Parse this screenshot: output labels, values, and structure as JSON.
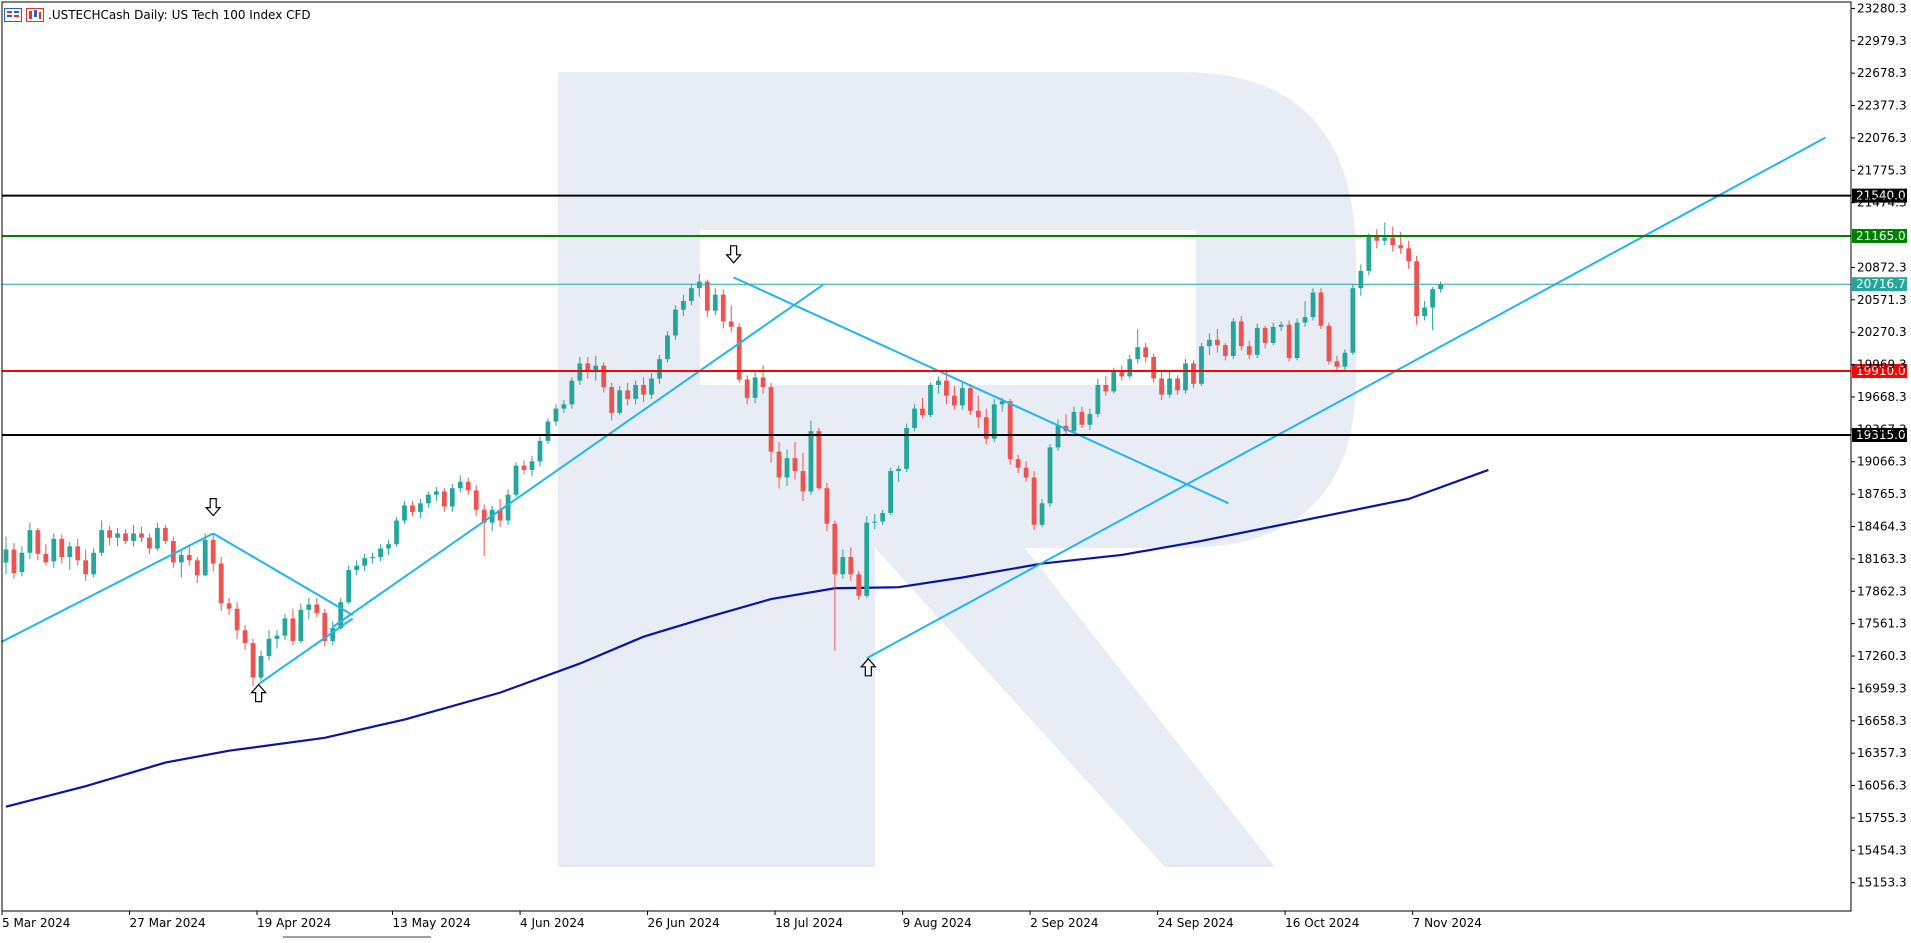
{
  "header": {
    "symbol": ".USTECHCash",
    "timeframe": "Daily:",
    "description": "US Tech 100 Index CFD"
  },
  "icons": [
    "chart-menu-icon",
    "chart-type-icon"
  ],
  "colors": {
    "bull": "#26a69a",
    "bear": "#ef5350",
    "ma": "#0b14a0",
    "trend": "#1fb6ef",
    "resistance_top": "#000000",
    "resistance": "#008000",
    "current": "#26a69a",
    "support": "#ff0000",
    "support_bottom": "#000000"
  },
  "chart_data": {
    "type": "candlestick",
    "y_axis": {
      "ticks": [
        "23280.3",
        "22979.3",
        "22678.3",
        "22377.3",
        "22076.3",
        "21775.3",
        "21474.3",
        "20872.3",
        "20571.3",
        "20270.3",
        "19969.3",
        "19668.3",
        "19367.3",
        "19066.3",
        "18765.3",
        "18464.3",
        "18163.3",
        "17862.3",
        "17561.3",
        "17260.3",
        "16959.3",
        "16658.3",
        "16357.3",
        "16056.3",
        "15755.3",
        "15454.3",
        "15153.3"
      ],
      "range": [
        14890,
        23340
      ]
    },
    "x_axis": {
      "labels": [
        {
          "label": "5 Mar 2024",
          "index": 0
        },
        {
          "label": "27 Mar 2024",
          "index": 16
        },
        {
          "label": "19 Apr 2024",
          "index": 32
        },
        {
          "label": "13 May 2024",
          "index": 49
        },
        {
          "label": "4 Jun 2024",
          "index": 65
        },
        {
          "label": "26 Jun 2024",
          "index": 81
        },
        {
          "label": "18 Jul 2024",
          "index": 97
        },
        {
          "label": "9 Aug 2024",
          "index": 113
        },
        {
          "label": "2 Sep 2024",
          "index": 129
        },
        {
          "label": "24 Sep 2024",
          "index": 145
        },
        {
          "label": "16 Oct 2024",
          "index": 161
        },
        {
          "label": "7 Nov 2024",
          "index": 177
        }
      ],
      "total_slots": 232
    },
    "levels": [
      {
        "name": "resistance-top",
        "value": 21540.0,
        "label": "21540.0",
        "color": "#000000"
      },
      {
        "name": "resistance",
        "value": 21165.0,
        "label": "21165.0",
        "color": "#008000"
      },
      {
        "name": "current-price",
        "value": 20716.7,
        "label": "20716.7",
        "color": "#26a69a"
      },
      {
        "name": "support",
        "value": 19910.0,
        "label": "19910.0",
        "color": "#ff0000"
      },
      {
        "name": "support-bottom",
        "value": 19315.0,
        "label": "19315.0",
        "color": "#000000"
      }
    ],
    "trendlines": [
      {
        "name": "trendline-march-rise",
        "from": [
          -0.6,
          17390
        ],
        "to": [
          26.0,
          18400
        ]
      },
      {
        "name": "trendline-april-fall",
        "from": [
          26.0,
          18400
        ],
        "to": [
          43.5,
          17640
        ]
      },
      {
        "name": "trendline-april-low-rise",
        "from": [
          31.7,
          17000
        ],
        "to": [
          43.5,
          17610
        ]
      },
      {
        "name": "trendline-april-july-rise",
        "from": [
          41.0,
          17530
        ],
        "to": [
          102.5,
          20710
        ]
      },
      {
        "name": "trendline-july-fall",
        "from": [
          91.3,
          20780
        ],
        "to": [
          153.4,
          18680
        ]
      },
      {
        "name": "trendline-august-rise",
        "from": [
          108.0,
          17240
        ],
        "to": [
          228.3,
          22080
        ]
      }
    ],
    "arrows": [
      {
        "name": "top-arrow-march",
        "direction": "down",
        "x": 26.0,
        "y": 18640
      },
      {
        "name": "bottom-arrow-april",
        "direction": "up",
        "x": 31.7,
        "y": 16920
      },
      {
        "name": "top-arrow-july",
        "direction": "down",
        "x": 91.3,
        "y": 20990
      },
      {
        "name": "bottom-arrow-august",
        "direction": "up",
        "x": 108.2,
        "y": 17160
      }
    ],
    "moving_average": {
      "name": "200-day-ma",
      "points": [
        [
          0,
          15860
        ],
        [
          10,
          16050
        ],
        [
          20,
          16270
        ],
        [
          28,
          16380
        ],
        [
          40,
          16500
        ],
        [
          50,
          16670
        ],
        [
          62,
          16920
        ],
        [
          72,
          17190
        ],
        [
          80,
          17440
        ],
        [
          88,
          17620
        ],
        [
          96,
          17790
        ],
        [
          104,
          17890
        ],
        [
          112,
          17900
        ],
        [
          120,
          17990
        ],
        [
          130,
          18120
        ],
        [
          140,
          18200
        ],
        [
          150,
          18330
        ],
        [
          160,
          18480
        ],
        [
          168,
          18600
        ],
        [
          176,
          18720
        ],
        [
          186,
          18990
        ]
      ]
    },
    "candles": [
      [
        18130,
        18370,
        18020,
        18250
      ],
      [
        18250,
        18310,
        17980,
        18030
      ],
      [
        18040,
        18280,
        18000,
        18220
      ],
      [
        18220,
        18500,
        18160,
        18430
      ],
      [
        18430,
        18450,
        18150,
        18210
      ],
      [
        18210,
        18300,
        18100,
        18130
      ],
      [
        18140,
        18400,
        18080,
        18350
      ],
      [
        18350,
        18390,
        18120,
        18180
      ],
      [
        18180,
        18320,
        18060,
        18280
      ],
      [
        18280,
        18350,
        18100,
        18150
      ],
      [
        18150,
        18250,
        17960,
        18020
      ],
      [
        18020,
        18260,
        17990,
        18220
      ],
      [
        18220,
        18520,
        18190,
        18430
      ],
      [
        18430,
        18470,
        18290,
        18360
      ],
      [
        18360,
        18450,
        18280,
        18400
      ],
      [
        18400,
        18440,
        18300,
        18330
      ],
      [
        18330,
        18480,
        18280,
        18400
      ],
      [
        18400,
        18460,
        18320,
        18360
      ],
      [
        18360,
        18400,
        18210,
        18260
      ],
      [
        18260,
        18500,
        18240,
        18450
      ],
      [
        18450,
        18480,
        18300,
        18330
      ],
      [
        18330,
        18370,
        18080,
        18130
      ],
      [
        18130,
        18250,
        17990,
        18200
      ],
      [
        18200,
        18300,
        18100,
        18150
      ],
      [
        18150,
        18180,
        17940,
        18010
      ],
      [
        18010,
        18400,
        18000,
        18340
      ],
      [
        18340,
        18400,
        18050,
        18120
      ],
      [
        18120,
        18180,
        17680,
        17750
      ],
      [
        17750,
        17800,
        17640,
        17700
      ],
      [
        17700,
        17760,
        17420,
        17500
      ],
      [
        17500,
        17550,
        17320,
        17380
      ],
      [
        17380,
        17420,
        16980,
        17060
      ],
      [
        17060,
        17310,
        17030,
        17260
      ],
      [
        17260,
        17500,
        17220,
        17420
      ],
      [
        17420,
        17500,
        17330,
        17450
      ],
      [
        17450,
        17650,
        17410,
        17610
      ],
      [
        17610,
        17700,
        17360,
        17400
      ],
      [
        17400,
        17750,
        17380,
        17690
      ],
      [
        17690,
        17800,
        17600,
        17740
      ],
      [
        17740,
        17800,
        17620,
        17660
      ],
      [
        17660,
        17700,
        17350,
        17400
      ],
      [
        17400,
        17580,
        17360,
        17520
      ],
      [
        17520,
        17800,
        17500,
        17760
      ],
      [
        17760,
        18100,
        17740,
        18060
      ],
      [
        18060,
        18150,
        18010,
        18100
      ],
      [
        18100,
        18210,
        18050,
        18170
      ],
      [
        18170,
        18220,
        18120,
        18180
      ],
      [
        18180,
        18300,
        18140,
        18260
      ],
      [
        18260,
        18340,
        18200,
        18300
      ],
      [
        18300,
        18550,
        18280,
        18520
      ],
      [
        18520,
        18700,
        18490,
        18660
      ],
      [
        18660,
        18700,
        18560,
        18600
      ],
      [
        18600,
        18720,
        18540,
        18680
      ],
      [
        18680,
        18790,
        18640,
        18760
      ],
      [
        18760,
        18830,
        18700,
        18790
      ],
      [
        18790,
        18820,
        18600,
        18650
      ],
      [
        18650,
        18860,
        18600,
        18820
      ],
      [
        18820,
        18940,
        18780,
        18880
      ],
      [
        18880,
        18920,
        18760,
        18800
      ],
      [
        18800,
        18850,
        18560,
        18620
      ],
      [
        18620,
        18670,
        18190,
        18500
      ],
      [
        18500,
        18660,
        18420,
        18620
      ],
      [
        18620,
        18720,
        18460,
        18520
      ],
      [
        18520,
        18810,
        18480,
        18760
      ],
      [
        18760,
        19060,
        18740,
        19030
      ],
      [
        19030,
        19080,
        18950,
        18990
      ],
      [
        18990,
        19120,
        18930,
        19070
      ],
      [
        19070,
        19300,
        19020,
        19260
      ],
      [
        19260,
        19470,
        19230,
        19440
      ],
      [
        19440,
        19600,
        19400,
        19560
      ],
      [
        19560,
        19640,
        19520,
        19600
      ],
      [
        19600,
        19850,
        19560,
        19820
      ],
      [
        19820,
        20040,
        19780,
        19980
      ],
      [
        19980,
        20040,
        19840,
        19900
      ],
      [
        19900,
        20050,
        19820,
        19960
      ],
      [
        19960,
        19990,
        19710,
        19760
      ],
      [
        19760,
        19800,
        19450,
        19520
      ],
      [
        19520,
        19770,
        19500,
        19730
      ],
      [
        19730,
        19800,
        19590,
        19650
      ],
      [
        19650,
        19820,
        19600,
        19780
      ],
      [
        19780,
        19850,
        19620,
        19690
      ],
      [
        19690,
        19890,
        19650,
        19840
      ],
      [
        19840,
        20060,
        19790,
        20020
      ],
      [
        20020,
        20280,
        19990,
        20240
      ],
      [
        20240,
        20520,
        20200,
        20480
      ],
      [
        20480,
        20620,
        20420,
        20560
      ],
      [
        20560,
        20720,
        20520,
        20680
      ],
      [
        20680,
        20810,
        20600,
        20740
      ],
      [
        20740,
        20760,
        20410,
        20470
      ],
      [
        20470,
        20680,
        20430,
        20620
      ],
      [
        20620,
        20670,
        20310,
        20370
      ],
      [
        20370,
        20520,
        20270,
        20320
      ],
      [
        20320,
        20350,
        19800,
        19830
      ],
      [
        19830,
        19870,
        19600,
        19660
      ],
      [
        19660,
        19900,
        19610,
        19850
      ],
      [
        19850,
        19960,
        19700,
        19760
      ],
      [
        19760,
        19800,
        19060,
        19160
      ],
      [
        19160,
        19250,
        18820,
        18920
      ],
      [
        18920,
        19180,
        18840,
        19100
      ],
      [
        19100,
        19250,
        18900,
        18980
      ],
      [
        18980,
        19150,
        18700,
        18790
      ],
      [
        18790,
        19450,
        18760,
        19350
      ],
      [
        19350,
        19380,
        18800,
        18820
      ],
      [
        18820,
        18870,
        18420,
        18490
      ],
      [
        18490,
        18520,
        17310,
        18020
      ],
      [
        18020,
        18250,
        17980,
        18180
      ],
      [
        18180,
        18270,
        17960,
        18020
      ],
      [
        18020,
        18050,
        17780,
        17820
      ],
      [
        17820,
        18560,
        17800,
        18500
      ],
      [
        18500,
        18580,
        18440,
        18510
      ],
      [
        18510,
        18620,
        18480,
        18590
      ],
      [
        18590,
        19010,
        18570,
        18980
      ],
      [
        18980,
        19030,
        18880,
        19000
      ],
      [
        19000,
        19420,
        18970,
        19380
      ],
      [
        19380,
        19600,
        19350,
        19560
      ],
      [
        19560,
        19660,
        19470,
        19500
      ],
      [
        19500,
        19800,
        19480,
        19780
      ],
      [
        19780,
        19860,
        19700,
        19820
      ],
      [
        19820,
        19920,
        19600,
        19680
      ],
      [
        19680,
        19770,
        19550,
        19590
      ],
      [
        19590,
        19800,
        19550,
        19750
      ],
      [
        19750,
        19790,
        19500,
        19540
      ],
      [
        19540,
        19680,
        19380,
        19480
      ],
      [
        19480,
        19560,
        19230,
        19280
      ],
      [
        19280,
        19650,
        19250,
        19600
      ],
      [
        19600,
        19660,
        19530,
        19630
      ],
      [
        19630,
        19650,
        19040,
        19090
      ],
      [
        19090,
        19130,
        18960,
        19010
      ],
      [
        19010,
        19070,
        18880,
        18920
      ],
      [
        18920,
        18980,
        18430,
        18480
      ],
      [
        18480,
        18720,
        18460,
        18680
      ],
      [
        18680,
        19230,
        18650,
        19200
      ],
      [
        19200,
        19460,
        19170,
        19400
      ],
      [
        19400,
        19510,
        19310,
        19350
      ],
      [
        19350,
        19580,
        19300,
        19530
      ],
      [
        19530,
        19580,
        19380,
        19410
      ],
      [
        19410,
        19560,
        19360,
        19510
      ],
      [
        19510,
        19840,
        19480,
        19780
      ],
      [
        19780,
        19860,
        19680,
        19720
      ],
      [
        19720,
        19940,
        19700,
        19900
      ],
      [
        19900,
        19960,
        19820,
        19860
      ],
      [
        19860,
        20060,
        19840,
        20020
      ],
      [
        20020,
        20300,
        19980,
        20130
      ],
      [
        20130,
        20170,
        19990,
        20040
      ],
      [
        20040,
        20070,
        19800,
        19840
      ],
      [
        19840,
        19910,
        19640,
        19690
      ],
      [
        19690,
        19900,
        19660,
        19840
      ],
      [
        19840,
        19870,
        19690,
        19730
      ],
      [
        19730,
        20020,
        19700,
        19980
      ],
      [
        19980,
        20010,
        19750,
        19790
      ],
      [
        19790,
        20170,
        19770,
        20140
      ],
      [
        20140,
        20260,
        20060,
        20200
      ],
      [
        20200,
        20300,
        20080,
        20150
      ],
      [
        20150,
        20170,
        20010,
        20050
      ],
      [
        20050,
        20400,
        20020,
        20370
      ],
      [
        20370,
        20420,
        20100,
        20140
      ],
      [
        20140,
        20190,
        20020,
        20060
      ],
      [
        20060,
        20350,
        20030,
        20310
      ],
      [
        20310,
        20330,
        20120,
        20170
      ],
      [
        20170,
        20360,
        20150,
        20320
      ],
      [
        20320,
        20370,
        20280,
        20340
      ],
      [
        20340,
        20380,
        20000,
        20030
      ],
      [
        20030,
        20400,
        20010,
        20360
      ],
      [
        20360,
        20560,
        20320,
        20410
      ],
      [
        20410,
        20680,
        20380,
        20640
      ],
      [
        20640,
        20680,
        20300,
        20330
      ],
      [
        20330,
        20360,
        19970,
        20000
      ],
      [
        20000,
        20050,
        19900,
        19950
      ],
      [
        19950,
        20110,
        19920,
        20080
      ],
      [
        20080,
        20720,
        20060,
        20680
      ],
      [
        20680,
        20900,
        20610,
        20840
      ],
      [
        20840,
        21190,
        20800,
        21170
      ],
      [
        21170,
        21230,
        21050,
        21120
      ],
      [
        21120,
        21290,
        21080,
        21150
      ],
      [
        21150,
        21250,
        21020,
        21080
      ],
      [
        21080,
        21200,
        21000,
        21050
      ],
      [
        21050,
        21120,
        20860,
        20930
      ],
      [
        20930,
        20980,
        20340,
        20420
      ],
      [
        20420,
        20560,
        20380,
        20500
      ],
      [
        20500,
        20690,
        20290,
        20670
      ],
      [
        20670,
        20740,
        20640,
        20716
      ]
    ]
  }
}
